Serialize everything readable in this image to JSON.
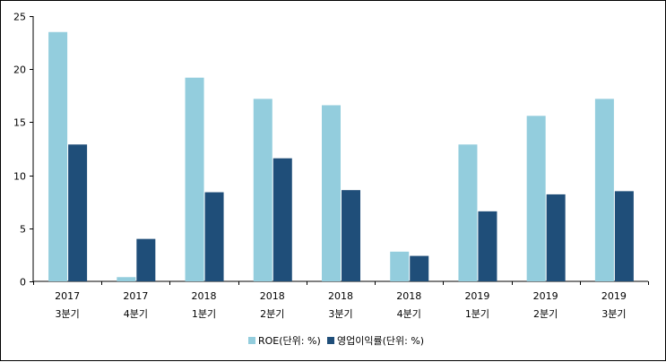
{
  "chart_data": {
    "type": "bar",
    "title": "",
    "xlabel": "",
    "ylabel": "",
    "ylim": [
      0,
      25
    ],
    "yticks": [
      0,
      5,
      10,
      15,
      20,
      25
    ],
    "grid": false,
    "legend_position": "bottom",
    "categories": [
      {
        "year": "2017",
        "quarter": "3분기"
      },
      {
        "year": "2017",
        "quarter": "4분기"
      },
      {
        "year": "2018",
        "quarter": "1분기"
      },
      {
        "year": "2018",
        "quarter": "2분기"
      },
      {
        "year": "2018",
        "quarter": "3분기"
      },
      {
        "year": "2018",
        "quarter": "4분기"
      },
      {
        "year": "2019",
        "quarter": "1분기"
      },
      {
        "year": "2019",
        "quarter": "2분기"
      },
      {
        "year": "2019",
        "quarter": "3분기"
      }
    ],
    "series": [
      {
        "name": "ROE(단위: %)",
        "color": "#93cddd",
        "values": [
          23.5,
          0.4,
          19.2,
          17.2,
          16.6,
          2.8,
          12.9,
          15.6,
          17.2
        ]
      },
      {
        "name": "영업이익률(단위: %)",
        "color": "#1f4e79",
        "values": [
          12.9,
          4.0,
          8.4,
          11.6,
          8.6,
          2.4,
          6.6,
          8.2,
          8.5
        ]
      }
    ]
  }
}
